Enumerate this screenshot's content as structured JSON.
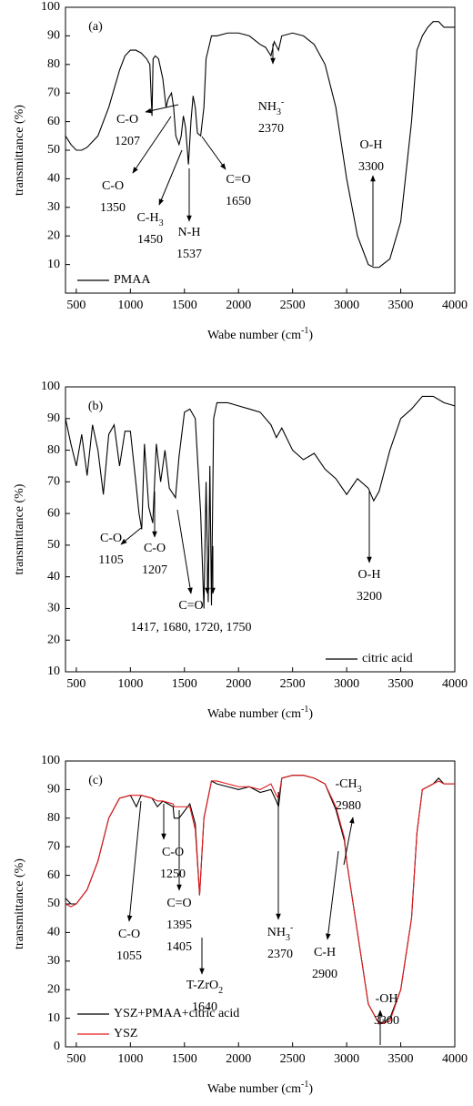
{
  "chart_data": [
    {
      "type": "line",
      "label": "(a)",
      "ylabel": "transmittance (%)",
      "xlabel": [
        "Wabe number (cm",
        {
          "sup": "-1"
        },
        ")"
      ],
      "xlim": [
        400,
        4000
      ],
      "ylim": [
        0,
        100
      ],
      "xticks": [
        500,
        1000,
        1500,
        2000,
        2500,
        3000,
        3500,
        4000
      ],
      "yticks": [
        10,
        20,
        30,
        40,
        50,
        60,
        70,
        80,
        90,
        100
      ],
      "legend": "lower left",
      "x": [
        400,
        450,
        500,
        550,
        600,
        700,
        800,
        900,
        950,
        1000,
        1050,
        1100,
        1150,
        1180,
        1200,
        1210,
        1230,
        1260,
        1300,
        1330,
        1350,
        1380,
        1400,
        1420,
        1450,
        1470,
        1490,
        1510,
        1537,
        1560,
        1580,
        1600,
        1620,
        1650,
        1680,
        1700,
        1750,
        1800,
        1900,
        2000,
        2100,
        2200,
        2250,
        2300,
        2330,
        2370,
        2400,
        2500,
        2600,
        2700,
        2800,
        2900,
        3000,
        3100,
        3200,
        3250,
        3300,
        3400,
        3500,
        3600,
        3650,
        3700,
        3750,
        3800,
        3850,
        3900,
        4000
      ],
      "series": [
        {
          "name": "PMAA",
          "color": "#000000",
          "values": [
            55,
            52,
            50,
            50,
            51,
            55,
            65,
            78,
            83,
            85,
            85,
            84,
            82,
            80,
            62,
            82,
            83,
            82,
            75,
            65,
            68,
            70,
            65,
            55,
            52,
            55,
            62,
            58,
            45,
            60,
            69,
            65,
            56,
            55,
            65,
            82,
            90,
            90,
            91,
            91,
            90,
            87,
            86,
            83,
            88,
            85,
            90,
            91,
            90,
            87,
            80,
            65,
            40,
            20,
            10,
            9,
            9,
            12,
            25,
            60,
            85,
            90,
            93,
            95,
            95,
            93,
            93
          ]
        }
      ],
      "annotations": [
        {
          "lines": [
            "C-O",
            "1207"
          ]
        },
        {
          "lines": [
            "C-O",
            "1350"
          ]
        },
        {
          "lines": [
            [
              "C-H",
              {
                "sub": "3"
              }
            ],
            "1450"
          ]
        },
        {
          "lines": [
            "N-H",
            "1537"
          ]
        },
        {
          "lines": [
            "C=O",
            "1650"
          ]
        },
        {
          "lines": [
            [
              "NH",
              {
                "sub": "3"
              },
              {
                "sup": "-"
              }
            ],
            "2370"
          ]
        },
        {
          "lines": [
            "O-H",
            "3300"
          ]
        }
      ]
    },
    {
      "type": "line",
      "label": "(b)",
      "ylabel": "transmittance (%)",
      "xlabel": [
        "Wabe number (cm",
        {
          "sup": "-1"
        },
        ")"
      ],
      "xlim": [
        400,
        4000
      ],
      "ylim": [
        10,
        100
      ],
      "xticks": [
        500,
        1000,
        1500,
        2000,
        2500,
        3000,
        3500,
        4000
      ],
      "yticks": [
        10,
        20,
        30,
        40,
        50,
        60,
        70,
        80,
        90,
        100
      ],
      "legend": "lower right",
      "x": [
        400,
        450,
        500,
        550,
        600,
        650,
        700,
        750,
        800,
        850,
        900,
        950,
        1000,
        1050,
        1080,
        1105,
        1130,
        1170,
        1207,
        1240,
        1280,
        1320,
        1360,
        1417,
        1450,
        1500,
        1550,
        1600,
        1650,
        1680,
        1700,
        1720,
        1735,
        1750,
        1770,
        1800,
        1900,
        2000,
        2100,
        2200,
        2300,
        2350,
        2400,
        2500,
        2600,
        2700,
        2800,
        2900,
        3000,
        3100,
        3200,
        3250,
        3300,
        3400,
        3500,
        3600,
        3700,
        3800,
        3900,
        4000
      ],
      "series": [
        {
          "name": "citric acid",
          "color": "#000000",
          "values": [
            90,
            82,
            75,
            85,
            72,
            88,
            80,
            66,
            85,
            88,
            75,
            86,
            86,
            70,
            60,
            55,
            82,
            62,
            57,
            82,
            70,
            80,
            68,
            65,
            78,
            92,
            93,
            90,
            60,
            30,
            70,
            32,
            75,
            31,
            90,
            95,
            95,
            94,
            93,
            92,
            88,
            84,
            87,
            80,
            77,
            79,
            74,
            71,
            66,
            71,
            68,
            64,
            67,
            80,
            90,
            93,
            97,
            97,
            95,
            94
          ]
        }
      ],
      "annotations": [
        {
          "lines": [
            "C-O",
            "1105"
          ]
        },
        {
          "lines": [
            "C-O",
            "1207"
          ]
        },
        {
          "lines": [
            "C=O",
            "1417, 1680, 1720, 1750"
          ]
        },
        {
          "lines": [
            "O-H",
            "3200"
          ]
        }
      ]
    },
    {
      "type": "line",
      "label": "(c)",
      "ylabel": "transmittance (%)",
      "xlabel": [
        "Wabe number (cm",
        {
          "sup": "-1"
        },
        ")"
      ],
      "xlim": [
        400,
        4000
      ],
      "ylim": [
        0,
        100
      ],
      "xticks": [
        500,
        1000,
        1500,
        2000,
        2500,
        3000,
        3500,
        4000
      ],
      "yticks": [
        0,
        10,
        20,
        30,
        40,
        50,
        60,
        70,
        80,
        90,
        100
      ],
      "legend": "lower left",
      "x": [
        400,
        450,
        500,
        600,
        700,
        800,
        900,
        1000,
        1055,
        1100,
        1200,
        1250,
        1300,
        1395,
        1405,
        1450,
        1550,
        1600,
        1640,
        1680,
        1750,
        1800,
        1900,
        2000,
        2100,
        2200,
        2300,
        2350,
        2370,
        2400,
        2500,
        2600,
        2700,
        2800,
        2900,
        2980,
        3000,
        3100,
        3200,
        3300,
        3400,
        3500,
        3600,
        3650,
        3700,
        3800,
        3850,
        3900,
        4000
      ],
      "series": [
        {
          "name": "YSZ+PMAA+citric acid",
          "color": "#000000",
          "values": [
            52,
            50,
            50,
            55,
            65,
            80,
            87,
            88,
            84,
            88,
            87,
            84,
            86,
            84,
            80,
            80,
            85,
            78,
            53,
            80,
            93,
            92,
            91,
            90,
            91,
            89,
            90,
            86,
            84,
            94,
            95,
            95,
            94,
            92,
            83,
            72,
            65,
            40,
            15,
            8,
            10,
            20,
            45,
            75,
            90,
            92,
            94,
            92,
            92
          ]
        },
        {
          "name": "YSZ",
          "color": "#e41a1c",
          "values": [
            50,
            49,
            50,
            55,
            65,
            80,
            87,
            88,
            88,
            88,
            87,
            86,
            86,
            85,
            84,
            84,
            84,
            76,
            53,
            80,
            93,
            93,
            92,
            91,
            91,
            90,
            92,
            88,
            87,
            94,
            95,
            95,
            94,
            92,
            84,
            73,
            65,
            40,
            15,
            8,
            9,
            20,
            45,
            75,
            90,
            92,
            93,
            92,
            92
          ]
        }
      ],
      "annotations": [
        {
          "lines": [
            "C-O",
            "1055"
          ]
        },
        {
          "lines": [
            "C-O",
            "1250"
          ]
        },
        {
          "lines": [
            "C=O",
            "1395",
            "1405"
          ]
        },
        {
          "lines": [
            [
              "T-ZrO",
              {
                "sub": "2"
              }
            ],
            "1640"
          ]
        },
        {
          "lines": [
            [
              "NH",
              {
                "sub": "3"
              },
              {
                "sup": "-"
              }
            ],
            "2370"
          ]
        },
        {
          "lines": [
            [
              "-CH",
              {
                "sub": "3"
              }
            ],
            "2980"
          ]
        },
        {
          "lines": [
            "C-H",
            "2900"
          ]
        },
        {
          "lines": [
            "-OH",
            "3300"
          ]
        }
      ]
    }
  ]
}
